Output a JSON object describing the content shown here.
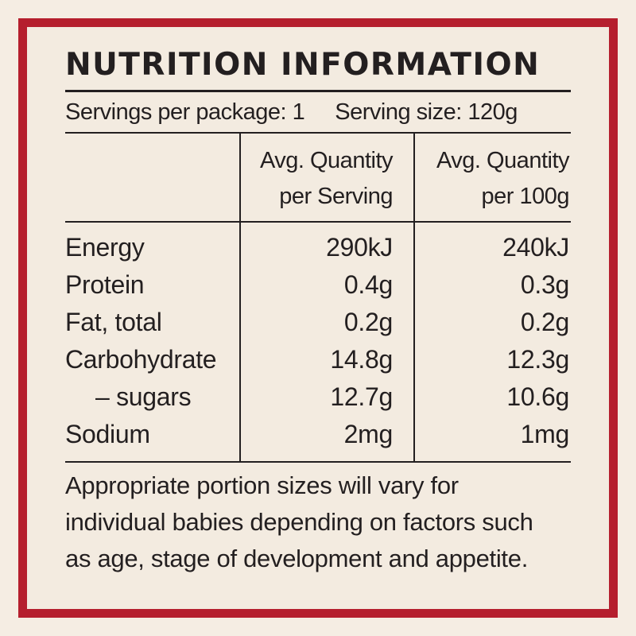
{
  "panel": {
    "title": "NUTRITION INFORMATION",
    "servings_per_package": "Servings per package: 1",
    "serving_size": "Serving size: 120g",
    "columns": {
      "per_serving": [
        "Avg. Quantity",
        "per Serving"
      ],
      "per_100g": [
        "Avg. Quantity",
        "per 100g"
      ]
    },
    "rows": [
      {
        "label": "Energy",
        "per_serving": "290kJ",
        "per_100g": "240kJ"
      },
      {
        "label": "Protein",
        "per_serving": "0.4g",
        "per_100g": "0.3g"
      },
      {
        "label": "Fat, total",
        "per_serving": "0.2g",
        "per_100g": "0.2g"
      },
      {
        "label": "Carbohydrate",
        "per_serving": "14.8g",
        "per_100g": "12.3g"
      },
      {
        "label": "– sugars",
        "per_serving": "12.7g",
        "per_100g": "10.6g"
      },
      {
        "label": "Sodium",
        "per_serving": "2mg",
        "per_100g": "1mg"
      }
    ],
    "footnote": [
      "Appropriate portion sizes will vary for",
      "individual babies depending on factors such",
      "as age, stage of development and appetite."
    ]
  },
  "colors": {
    "border": "#b51f2e",
    "background": "#f3ebe0",
    "text": "#231f20"
  }
}
